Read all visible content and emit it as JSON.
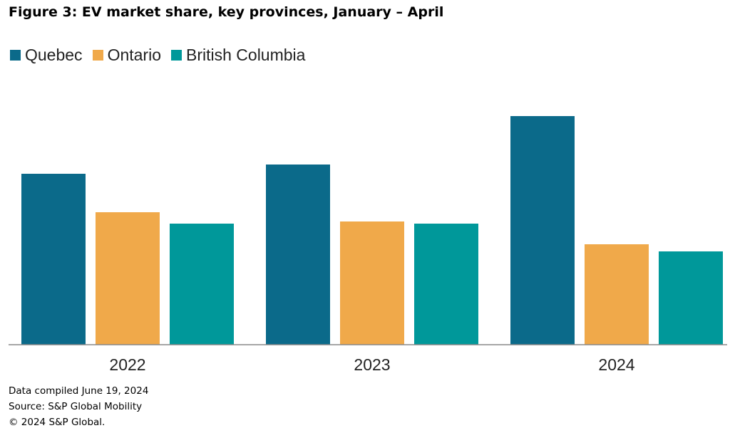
{
  "chart_data": {
    "type": "bar",
    "title": "Figure 3: EV market share, key provinces, January – April",
    "categories": [
      "2022",
      "2023",
      "2024"
    ],
    "series": [
      {
        "name": "Quebec",
        "color": "#0b6a8a",
        "values": [
          240,
          253,
          321
        ]
      },
      {
        "name": "Ontario",
        "color": "#f0a94a",
        "values": [
          186,
          173,
          141
        ]
      },
      {
        "name": "British Columbia",
        "color": "#00989a",
        "values": [
          170,
          170,
          131
        ]
      }
    ],
    "value_note": "relative bar heights, no y-axis scale shown",
    "xlabel": "",
    "ylabel": "",
    "ylim": [
      0,
      340
    ],
    "grid": false,
    "legend_position": "top-left"
  },
  "footer": {
    "line1": "Data compiled June 19, 2024",
    "line2": "Source: S&P Global Mobility",
    "line3": "© 2024 S&P Global."
  }
}
